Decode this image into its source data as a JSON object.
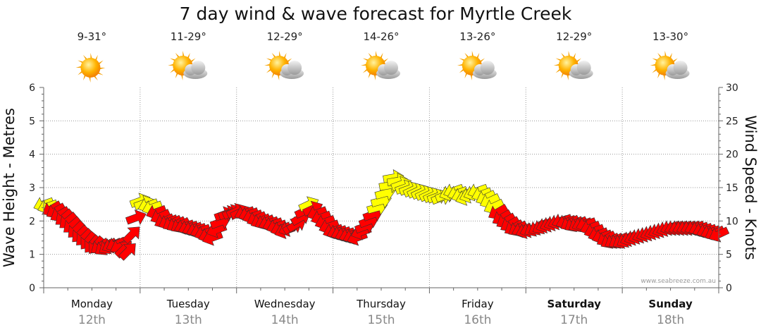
{
  "chart_data": {
    "type": "line",
    "title": "7 day wind & wave forecast for Myrtle Creek",
    "ylabel_left": "Wave Height - Metres",
    "ylabel_right": "Wind Speed - Knots",
    "ylim_left": [
      0,
      6
    ],
    "ylim_right": [
      0,
      30
    ],
    "yticks_left": [
      "0",
      "1",
      "2",
      "3",
      "4",
      "5",
      "6"
    ],
    "yticks_right": [
      "0",
      "5",
      "10",
      "15",
      "20",
      "25",
      "30"
    ],
    "watermark": "www.seabreeze.com.au",
    "colors": {
      "low_wind": "#ff0000",
      "high_wind": "#ffff00",
      "grid": "#999999",
      "axis": "#666666"
    },
    "wind_threshold_knots": 12,
    "days": [
      {
        "name": "Monday",
        "date": "12th",
        "temp": "9-31°",
        "icon": "sun-icon",
        "bold": false
      },
      {
        "name": "Tuesday",
        "date": "13th",
        "temp": "11-29°",
        "icon": "partly-cloudy-icon",
        "bold": false
      },
      {
        "name": "Wednesday",
        "date": "14th",
        "temp": "12-29°",
        "icon": "partly-cloudy-icon",
        "bold": false
      },
      {
        "name": "Thursday",
        "date": "15th",
        "temp": "14-26°",
        "icon": "partly-cloudy-icon",
        "bold": false
      },
      {
        "name": "Friday",
        "date": "16th",
        "temp": "13-26°",
        "icon": "partly-cloudy-icon",
        "bold": false
      },
      {
        "name": "Saturday",
        "date": "17th",
        "temp": "12-29°",
        "icon": "partly-cloudy-icon",
        "bold": true
      },
      {
        "name": "Sunday",
        "date": "18th",
        "temp": "13-30°",
        "icon": "partly-cloudy-icon",
        "bold": true
      }
    ],
    "series": [
      {
        "name": "Wind speed (knots) with direction arrows",
        "hours": [
          0,
          3,
          6,
          9,
          12,
          15,
          18,
          21,
          24,
          27,
          30,
          33,
          36,
          39,
          42,
          45,
          48,
          51,
          54,
          57,
          60,
          63,
          66,
          69,
          72,
          75,
          78,
          81,
          84,
          87,
          90,
          93,
          96,
          99,
          102,
          105,
          108,
          111,
          114,
          117,
          120,
          123,
          126,
          129,
          132,
          135,
          138,
          141,
          144,
          147,
          150,
          153,
          156,
          159,
          162,
          165,
          168
        ],
        "values": [
          12.5,
          11.5,
          10,
          8,
          6.5,
          6,
          6.5,
          5.5,
          13,
          12,
          10,
          9.5,
          9,
          8.5,
          7.5,
          11,
          11.5,
          11,
          10,
          9.5,
          8.5,
          9.5,
          12.5,
          10.5,
          8.5,
          8,
          7.5,
          10,
          13,
          16.5,
          15,
          14.5,
          14,
          13.5,
          14.5,
          13.5,
          14.5,
          13,
          10.5,
          9,
          8.5,
          9,
          9.5,
          10,
          9.5,
          9.5,
          8,
          7,
          7,
          7.5,
          8,
          8.5,
          9,
          9,
          9,
          8.5,
          8
        ],
        "directions_deg": [
          200,
          210,
          220,
          225,
          230,
          215,
          205,
          45,
          20,
          200,
          205,
          210,
          200,
          200,
          200,
          20,
          25,
          200,
          205,
          200,
          200,
          30,
          25,
          200,
          200,
          200,
          200,
          20,
          15,
          10,
          20,
          25,
          25,
          20,
          200,
          200,
          200,
          205,
          210,
          210,
          200,
          210,
          200,
          200,
          210,
          200,
          200,
          210,
          210,
          200,
          200,
          200,
          200,
          200,
          200,
          200,
          205
        ]
      }
    ]
  }
}
